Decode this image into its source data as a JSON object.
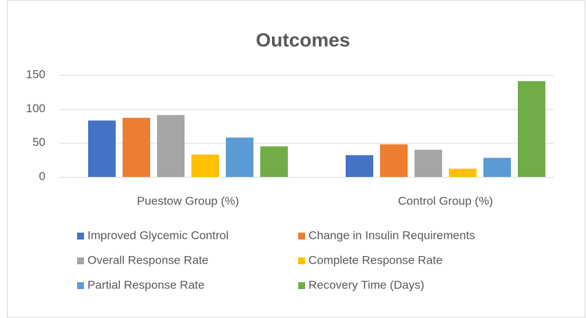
{
  "chart_data": {
    "type": "bar",
    "title": "Outcomes",
    "categories": [
      "Puestow Group (%)",
      "Control Group (%)"
    ],
    "series": [
      {
        "name": "Improved Glycemic Control",
        "color": "#4472c4",
        "values": [
          83,
          32
        ]
      },
      {
        "name": "Change in Insulin Requirements",
        "color": "#ed7d31",
        "values": [
          87,
          48
        ]
      },
      {
        "name": "Overall Response Rate",
        "color": "#a5a5a5",
        "values": [
          91,
          40
        ]
      },
      {
        "name": "Complete Response Rate",
        "color": "#ffc000",
        "values": [
          33,
          12
        ]
      },
      {
        "name": "Partial Response Rate",
        "color": "#5b9bd5",
        "values": [
          58,
          28
        ]
      },
      {
        "name": "Recovery Time (Days)",
        "color": "#70ad47",
        "values": [
          45,
          141
        ]
      }
    ],
    "ylim": [
      0,
      150
    ],
    "yticks": [
      0,
      50,
      100,
      150
    ],
    "grid": true,
    "legend": "bottom"
  }
}
